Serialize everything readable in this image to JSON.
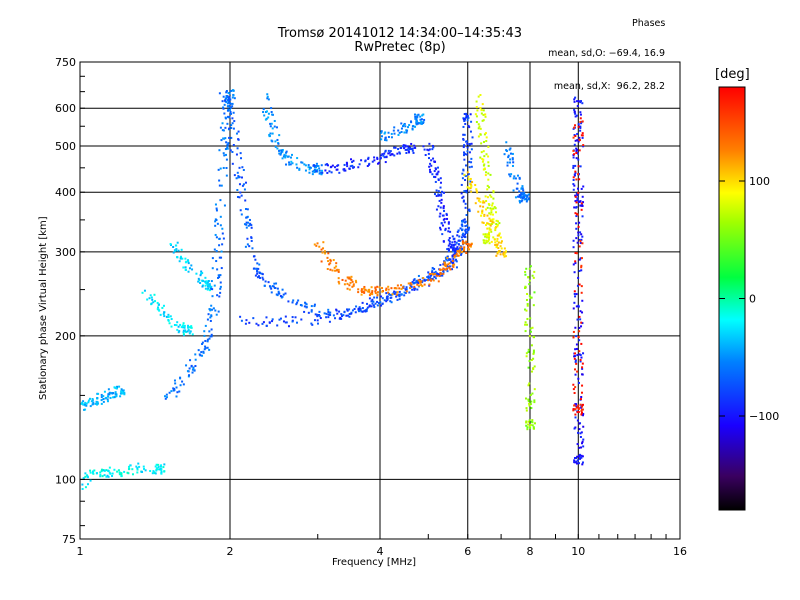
{
  "title_line1": "Tromsø 20141012 14:34:00–14:35:43",
  "title_line2": "RwPretec (8p)",
  "phase_header": "Phases",
  "phase_stats": [
    "mean, sd,O: −69.4, 16.9",
    "mean, sd,X:  96.2, 28.2"
  ],
  "colorbar": {
    "unit_label": "[deg]",
    "range": [
      -180,
      180
    ],
    "ticks": [
      {
        "value": 100,
        "label": "100"
      },
      {
        "value": 0,
        "label": "0"
      },
      {
        "value": -100,
        "label": "−100"
      }
    ]
  },
  "chart_data": {
    "type": "scatter",
    "title": "Tromsø 20141012 14:34:00–14:35:43",
    "subtitle": "RwPretec (8p)",
    "xlabel": "Frequency [MHz]",
    "ylabel": "Stationary phase Virtual Height [km]",
    "x_scale": "log",
    "y_scale": "log",
    "xlim": [
      1,
      16
    ],
    "ylim": [
      75,
      750
    ],
    "x_ticks": [
      1,
      2,
      4,
      6,
      8,
      10,
      16
    ],
    "x_tick_labels": [
      "1",
      "2",
      "4",
      "6",
      "8",
      "10",
      "16"
    ],
    "y_ticks": [
      75,
      100,
      200,
      300,
      400,
      500,
      600,
      750
    ],
    "y_tick_labels": [
      "75",
      "100",
      "200",
      "300",
      "400",
      "500",
      "600",
      "750"
    ],
    "grid": true,
    "color_encoding": "phase [deg]",
    "traces": [
      {
        "name": "",
        "color_deg": -40,
        "points": [
          [
            1.0,
            142
          ],
          [
            1.05,
            145
          ],
          [
            1.1,
            148
          ],
          [
            1.15,
            151
          ],
          [
            1.2,
            153
          ]
        ]
      },
      {
        "name": "",
        "color_deg": -20,
        "points": [
          [
            1.0,
            96
          ],
          [
            1.05,
            102
          ],
          [
            1.12,
            104
          ],
          [
            1.2,
            103
          ],
          [
            1.3,
            106
          ],
          [
            1.45,
            105
          ]
        ]
      },
      {
        "name": "",
        "color_deg": -30,
        "points": [
          [
            1.55,
            310
          ],
          [
            1.6,
            290
          ],
          [
            1.7,
            270
          ],
          [
            1.8,
            255
          ]
        ]
      },
      {
        "name": "",
        "color_deg": -25,
        "points": [
          [
            1.35,
            245
          ],
          [
            1.45,
            228
          ],
          [
            1.55,
            212
          ],
          [
            1.65,
            205
          ]
        ]
      },
      {
        "name": "",
        "color_deg": -60,
        "points": [
          [
            1.5,
            150
          ],
          [
            1.6,
            160
          ],
          [
            1.7,
            175
          ],
          [
            1.8,
            195
          ],
          [
            1.85,
            220
          ],
          [
            1.88,
            260
          ],
          [
            1.9,
            320
          ],
          [
            1.92,
            400
          ],
          [
            1.95,
            500
          ],
          [
            1.97,
            600
          ],
          [
            2.0,
            640
          ]
        ]
      },
      {
        "name": "",
        "color_deg": -70,
        "points": [
          [
            1.95,
            640
          ],
          [
            2.0,
            580
          ],
          [
            2.05,
            500
          ],
          [
            2.1,
            420
          ],
          [
            2.15,
            350
          ],
          [
            2.2,
            300
          ],
          [
            2.3,
            270
          ],
          [
            2.45,
            250
          ],
          [
            2.7,
            235
          ],
          [
            3.0,
            225
          ],
          [
            3.4,
            222
          ],
          [
            3.8,
            230
          ],
          [
            4.2,
            240
          ],
          [
            4.6,
            252
          ],
          [
            5.0,
            265
          ],
          [
            5.4,
            280
          ],
          [
            5.7,
            300
          ],
          [
            5.9,
            340
          ]
        ]
      },
      {
        "name": "",
        "color_deg": -80,
        "points": [
          [
            2.1,
            215
          ],
          [
            2.5,
            214
          ],
          [
            3.0,
            216
          ],
          [
            3.5,
            225
          ],
          [
            4.0,
            238
          ],
          [
            4.5,
            250
          ],
          [
            5.0,
            262
          ],
          [
            5.4,
            275
          ],
          [
            5.7,
            290
          ],
          [
            5.85,
            320
          ],
          [
            5.95,
            380
          ],
          [
            5.98,
            440
          ],
          [
            6.0,
            500
          ],
          [
            6.0,
            570
          ]
        ]
      },
      {
        "name": "",
        "color_deg": -90,
        "points": [
          [
            5.0,
            500
          ],
          [
            5.1,
            460
          ],
          [
            5.2,
            420
          ],
          [
            5.3,
            380
          ],
          [
            5.4,
            345
          ],
          [
            5.5,
            315
          ],
          [
            5.6,
            300
          ]
        ]
      },
      {
        "name": "",
        "color_deg": -50,
        "points": [
          [
            2.35,
            640
          ],
          [
            2.4,
            560
          ],
          [
            2.5,
            500
          ],
          [
            2.6,
            470
          ],
          [
            2.8,
            452
          ],
          [
            3.0,
            446
          ]
        ]
      },
      {
        "name": "",
        "color_deg": -90,
        "points": [
          [
            3.0,
            446
          ],
          [
            3.3,
            450
          ],
          [
            3.6,
            460
          ],
          [
            4.0,
            472
          ],
          [
            4.3,
            484
          ],
          [
            4.6,
            495
          ]
        ]
      },
      {
        "name": "",
        "color_deg": -55,
        "points": [
          [
            4.0,
            520
          ],
          [
            4.3,
            535
          ],
          [
            4.6,
            555
          ],
          [
            4.8,
            570
          ]
        ]
      },
      {
        "name": "",
        "color_deg": 130,
        "points": [
          [
            3.0,
            310
          ],
          [
            3.2,
            280
          ],
          [
            3.4,
            262
          ],
          [
            3.6,
            252
          ],
          [
            3.8,
            248
          ],
          [
            4.1,
            248
          ],
          [
            4.5,
            252
          ],
          [
            5.0,
            262
          ],
          [
            5.4,
            275
          ],
          [
            5.7,
            292
          ],
          [
            6.0,
            310
          ]
        ]
      },
      {
        "name": "",
        "color_deg": 80,
        "points": [
          [
            6.3,
            630
          ],
          [
            6.4,
            560
          ],
          [
            6.5,
            480
          ],
          [
            6.6,
            420
          ],
          [
            6.7,
            370
          ],
          [
            6.8,
            340
          ],
          [
            6.6,
            320
          ]
        ]
      },
      {
        "name": "",
        "color_deg": 100,
        "points": [
          [
            6.0,
            430
          ],
          [
            6.2,
            400
          ],
          [
            6.5,
            360
          ],
          [
            6.8,
            330
          ],
          [
            7.0,
            300
          ]
        ]
      },
      {
        "name": "",
        "color_deg": -60,
        "points": [
          [
            7.2,
            500
          ],
          [
            7.4,
            440
          ],
          [
            7.6,
            400
          ],
          [
            7.8,
            390
          ]
        ]
      },
      {
        "name": "",
        "color_deg": 60,
        "points": [
          [
            8.0,
            280
          ],
          [
            8.0,
            240
          ],
          [
            8.0,
            200
          ],
          [
            8.0,
            160
          ],
          [
            8.0,
            130
          ]
        ]
      },
      {
        "name": "",
        "color_deg": -100,
        "points": [
          [
            10.0,
            640
          ],
          [
            10.0,
            560
          ],
          [
            10.0,
            500
          ],
          [
            10.0,
            430
          ],
          [
            10.0,
            380
          ],
          [
            10.0,
            320
          ],
          [
            10.0,
            250
          ],
          [
            10.0,
            200
          ],
          [
            10.0,
            160
          ],
          [
            10.0,
            130
          ],
          [
            10.0,
            110
          ]
        ]
      },
      {
        "name": "",
        "color_deg": 170,
        "points": [
          [
            10.0,
            600
          ],
          [
            10.0,
            480
          ],
          [
            10.0,
            300
          ],
          [
            10.0,
            180
          ],
          [
            10.0,
            140
          ]
        ]
      }
    ]
  }
}
